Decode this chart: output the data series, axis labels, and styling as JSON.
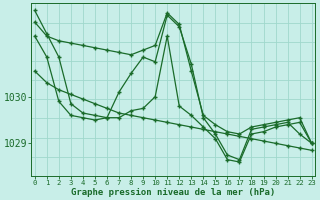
{
  "bg_color": "#c8eee8",
  "grid_color": "#a0d8cc",
  "line_color": "#1a6b2a",
  "marker_color": "#1a6b2a",
  "xlabel": "Graphe pression niveau de la mer (hPa)",
  "xlabel_color": "#1a6b2a",
  "tick_color": "#1a6b2a",
  "yticks": [
    1029,
    1030
  ],
  "ylim": [
    1028.3,
    1032.0
  ],
  "xlim": [
    -0.3,
    23.3
  ],
  "xticks": [
    0,
    1,
    2,
    3,
    4,
    5,
    6,
    7,
    8,
    9,
    10,
    11,
    12,
    13,
    14,
    15,
    16,
    17,
    18,
    19,
    20,
    21,
    22,
    23
  ],
  "series": [
    [
      1031.6,
      1031.3,
      1031.2,
      1031.15,
      1031.1,
      1031.05,
      1031.0,
      1030.95,
      1030.9,
      1031.0,
      1031.1,
      1031.8,
      1031.55,
      1030.55,
      1029.6,
      1029.4,
      1029.25,
      1029.2,
      1029.35,
      1029.4,
      1029.45,
      1029.5,
      1029.55,
      1029.0
    ],
    [
      1031.85,
      1031.35,
      1030.85,
      1029.85,
      1029.65,
      1029.6,
      1029.55,
      1030.1,
      1030.5,
      1030.85,
      1030.75,
      1031.75,
      1031.5,
      1030.7,
      1029.55,
      1029.2,
      1028.75,
      1028.65,
      1029.3,
      1029.35,
      1029.4,
      1029.45,
      1029.2,
      1029.0
    ],
    [
      1031.3,
      1030.85,
      1029.9,
      1029.6,
      1029.55,
      1029.5,
      1029.55,
      1029.55,
      1029.7,
      1029.75,
      1030.0,
      1031.3,
      1029.8,
      1029.6,
      1029.35,
      1029.1,
      1028.65,
      1028.6,
      1029.2,
      1029.25,
      1029.35,
      1029.4,
      1029.45,
      1029.0
    ],
    [
      1030.55,
      1030.3,
      1030.15,
      1030.05,
      1029.95,
      1029.85,
      1029.75,
      1029.65,
      1029.6,
      1029.55,
      1029.5,
      1029.45,
      1029.4,
      1029.35,
      1029.3,
      1029.25,
      1029.2,
      1029.15,
      1029.1,
      1029.05,
      1029.0,
      1028.95,
      1028.9,
      1028.85
    ]
  ]
}
